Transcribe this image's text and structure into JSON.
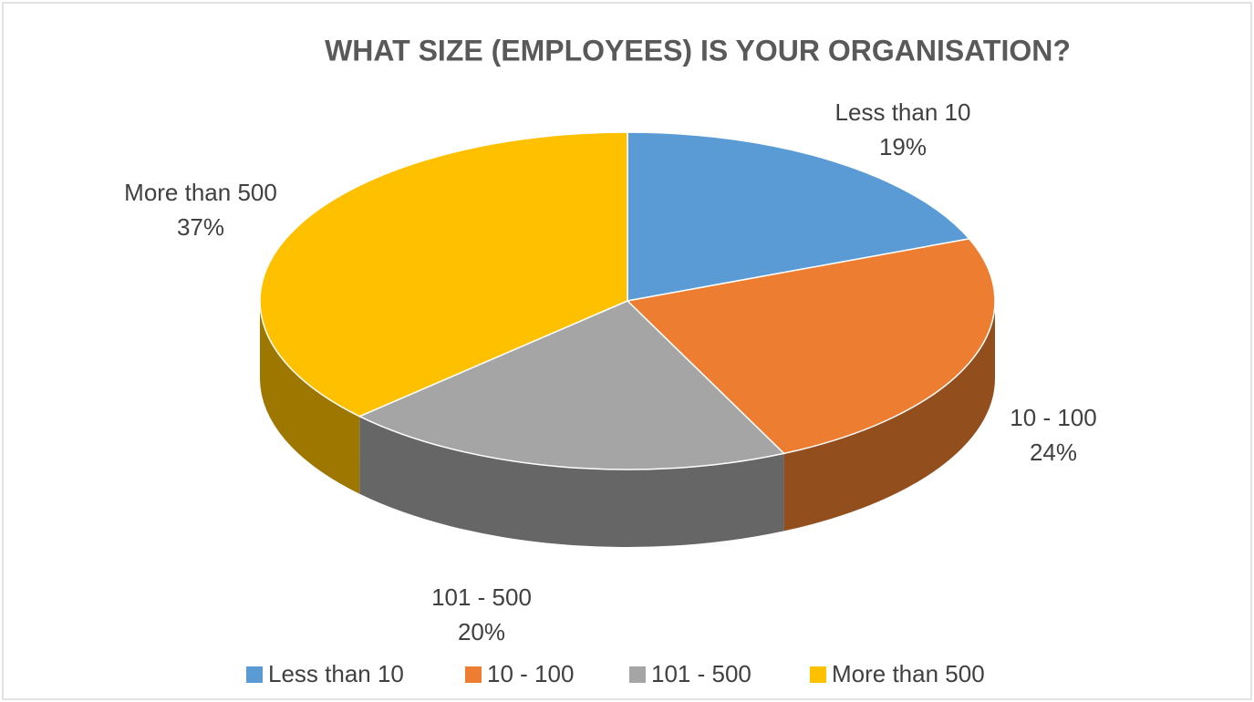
{
  "chart_data": {
    "type": "pie3d",
    "title": "WHAT SIZE (EMPLOYEES) IS YOUR ORGANISATION?",
    "categories": [
      "Less than 10",
      "10 - 100",
      "101 - 500",
      "More than 500"
    ],
    "values": [
      19,
      24,
      20,
      37
    ],
    "value_labels": [
      "19%",
      "24%",
      "20%",
      "37%"
    ],
    "colors": [
      "#5b9bd5",
      "#ed7d31",
      "#a5a5a5",
      "#ffc000"
    ],
    "legend": "bottom"
  }
}
